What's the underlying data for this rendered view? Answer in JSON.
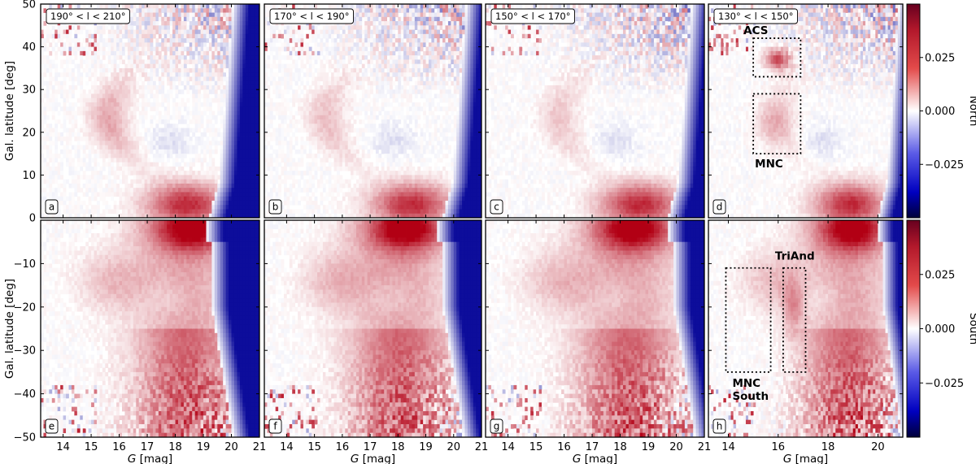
{
  "colors": {
    "positive": "#b40426",
    "negative": "#000080",
    "neutral": "#ffffff",
    "frame": "#000000"
  },
  "colorbars": [
    {
      "label": "North",
      "ticks": [
        "0.025",
        "0.000",
        "−0.025"
      ],
      "tick_values": [
        0.025,
        0.0,
        -0.025
      ],
      "range": [
        -0.05,
        0.05
      ]
    },
    {
      "label": "South",
      "ticks": [
        "0.025",
        "0.000",
        "−0.025"
      ],
      "tick_values": [
        0.025,
        0.0,
        -0.025
      ],
      "range": [
        -0.05,
        0.05
      ]
    }
  ],
  "chart_data": {
    "type": "heatmap",
    "xlabel_var": "G",
    "xlabel_unit": "[mag]",
    "ylabel": "Gal. latitude [deg]",
    "xlim": [
      13.2,
      21.0
    ],
    "ylim_north": [
      0,
      50
    ],
    "ylim_south": [
      -50,
      0
    ],
    "y_ticks_north": [
      "0",
      "10",
      "20",
      "30",
      "40",
      "50"
    ],
    "y_tick_values_north": [
      0,
      10,
      20,
      30,
      40,
      50
    ],
    "y_ticks_south": [
      "−10",
      "−20",
      "−30",
      "−40",
      "−50"
    ],
    "y_tick_values_south": [
      -10,
      -20,
      -30,
      -40,
      -50
    ],
    "x_ticks": [
      "14",
      "15",
      "16",
      "17",
      "18",
      "19",
      "20",
      "21"
    ],
    "x_tick_values": [
      14,
      15,
      16,
      17,
      18,
      19,
      20,
      21
    ],
    "x_ticks_last_panel": [
      "14",
      "16",
      "18",
      "20"
    ],
    "x_tick_values_last_panel": [
      14,
      16,
      18,
      20
    ],
    "columns": [
      {
        "title": "190$^\\circ$ < l < 210$^\\circ$",
        "title_display": "190° < l < 210°"
      },
      {
        "title": "170° < l < 190°",
        "title_display": "170° < l < 190°"
      },
      {
        "title": "150° < l < 170°",
        "title_display": "150° < l < 170°"
      },
      {
        "title": "130° < l < 150°",
        "title_display": "130° < l < 150°"
      }
    ],
    "panel_letters": [
      "a",
      "b",
      "c",
      "d",
      "e",
      "f",
      "g",
      "h"
    ],
    "annotations": [
      {
        "panel": "d",
        "label": "ACS",
        "box": {
          "x": [
            15.0,
            16.9
          ],
          "y": [
            33,
            42
          ]
        }
      },
      {
        "panel": "d",
        "label": "MNC",
        "box": {
          "x": [
            15.0,
            16.9
          ],
          "y": [
            15,
            29
          ]
        }
      },
      {
        "panel": "h",
        "label": "TriAnd",
        "box": {
          "x": [
            16.2,
            17.1
          ],
          "y": [
            -35,
            -11
          ]
        }
      },
      {
        "panel": "h",
        "label_lines": [
          "MNC",
          "South"
        ],
        "box": {
          "x": [
            13.9,
            15.7
          ],
          "y": [
            -35,
            -11
          ]
        }
      }
    ]
  }
}
